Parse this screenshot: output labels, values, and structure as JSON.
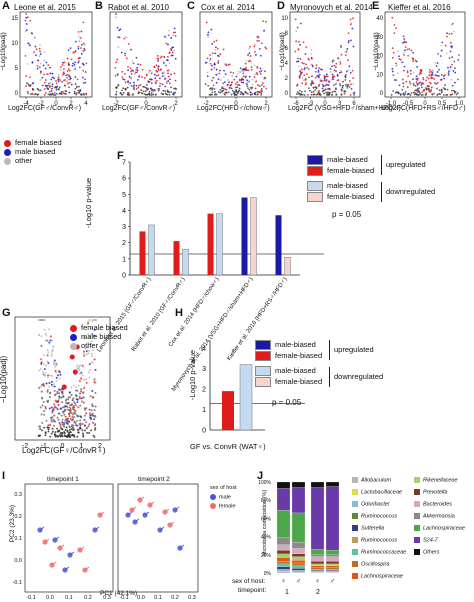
{
  "colors": {
    "female": "#e21a1c",
    "male": "#1f1fc8",
    "other": "#b9b9b9",
    "male_up": "#1a1aa6",
    "female_up": "#e11a1a",
    "male_down": "#c5d9f1",
    "female_down": "#f6d4cf"
  },
  "panel_letters": [
    "A",
    "B",
    "C",
    "D",
    "E",
    "F",
    "G",
    "H",
    "I",
    "J"
  ],
  "volcano_ylabel": "−Log10(padj)",
  "volcanos": [
    {
      "letter": "A",
      "title": "Leone et al. 2015",
      "xlabel": "Log2FC(GF♂/ConvR♂)",
      "xticks": [
        "-4",
        "-2",
        "0",
        "2",
        "4"
      ],
      "yticks": [
        "0",
        "5",
        "10",
        "15"
      ]
    },
    {
      "letter": "B",
      "title": "Rabot et al. 2010",
      "xlabel": "Log2FC(GF♂/ConvR♂)",
      "xticks": [
        "-2",
        "0",
        "2"
      ],
      "yticks": []
    },
    {
      "letter": "C",
      "title": "Cox et al. 2014",
      "xlabel": "Log2FC(HFD♂/chow♂)",
      "xticks": [
        "-2",
        "0",
        "2"
      ],
      "yticks": []
    },
    {
      "letter": "D",
      "title": "Myronovych et al. 2014",
      "xlabel": "Log2FC (VSG+HFD♂/sham+HFD♂)",
      "xticks": [
        "-6",
        "-3",
        "0",
        "3",
        "6"
      ],
      "yticks": [
        "0",
        "2",
        "4",
        "6",
        "8",
        "10"
      ]
    },
    {
      "letter": "E",
      "title": "Kieffer et al. 2016",
      "xlabel": "Log2FC(HFD+RS♂/HFD♂)",
      "xticks": [
        "-1.0",
        "-0.5",
        "0",
        "0.5",
        "1.0"
      ],
      "yticks": [
        "0",
        "10",
        "20",
        "30",
        "40"
      ]
    }
  ],
  "legend_bias": [
    {
      "key": "female",
      "label": "female biased"
    },
    {
      "key": "male",
      "label": "male biased"
    },
    {
      "key": "other",
      "label": "other"
    }
  ],
  "panel_F": {
    "ylabel": "-Log10 p-value",
    "yticks": [
      "0",
      "1",
      "2",
      "3",
      "4",
      "5",
      "6",
      "7"
    ],
    "threshold_label": "p = 0.05",
    "legend": [
      {
        "key": "male_up",
        "label": "male-biased"
      },
      {
        "key": "female_up",
        "label": "female-biased"
      },
      {
        "key": "male_down",
        "label": "male-biased"
      },
      {
        "key": "female_down",
        "label": "female-biased"
      }
    ],
    "group_up": "upregulated",
    "group_down": "downregulated",
    "categories": [
      "Leone et al. 2015 (GF♂/ConvR♂)",
      "Rabot et al. 2010 (GF♂/ConvR♂)",
      "Cox et al. 2014 (HFD♂/chow♂)",
      "Myronovych et al. 2014 (VSG+HFD♂/sham+HFD♂)",
      "Kieffer et al. 2016 (HFD+RS♂/HFD♂)"
    ]
  },
  "panel_G": {
    "ylabel": "−Log10(padj)",
    "xlabel": "Log2FC(GF♀/ConvR♀)",
    "xticks": [
      "-2",
      "-1",
      "0",
      "1",
      "2"
    ]
  },
  "panel_H": {
    "ylabel": "-Log10 p-value",
    "yticks": [
      "0",
      "1",
      "2",
      "3",
      "4"
    ],
    "threshold_label": "p = 0.05",
    "xlabel": "GF vs. ConvR (WAT♀)",
    "legend": [
      {
        "key": "male_up",
        "label": "male-biased"
      },
      {
        "key": "female_up",
        "label": "female-biased"
      },
      {
        "key": "male_down",
        "label": "male-biased"
      },
      {
        "key": "female_down",
        "label": "female-biased"
      }
    ],
    "group_up": "upregulated",
    "group_down": "downregulated"
  },
  "panel_I": {
    "timepoint1": "timepoint 1",
    "timepoint2": "timepoint 2",
    "ylabel": "PC2 (23.3%)",
    "xlabel": "PC1 (42.1%)",
    "xticks": [
      "-0.1",
      "0.0",
      "0.1",
      "0.2",
      "0.3"
    ],
    "yticks": [
      "-0.1",
      "0.0",
      "0.1",
      "0.2",
      "0.3"
    ],
    "legend_title": "sex of host",
    "legend": [
      {
        "label": "male",
        "color": "#4a52d6"
      },
      {
        "label": "female",
        "color": "#f06a6a"
      }
    ]
  },
  "panel_J": {
    "ylabel": "Microbiota composition (%)",
    "yticks": [
      "0%",
      "20%",
      "40%",
      "60%",
      "80%",
      "100%"
    ],
    "sex_label": "sex of host:",
    "timepoint_label": "timepoint:",
    "timepoints": [
      "1",
      "2"
    ],
    "taxa": [
      {
        "name": "Allobaculum",
        "color": "#b8b8b8"
      },
      {
        "name": "Lactobacillaceae",
        "color": "#dcdc4a"
      },
      {
        "name": "Odoribacter",
        "color": "#8bb8d8"
      },
      {
        "name": "Ruminococcus",
        "color": "#5e8a3c"
      },
      {
        "name": "Sutterella",
        "color": "#3a3a80"
      },
      {
        "name": "Ruminococcus",
        "color": "#b8a060"
      },
      {
        "name": "Ruminococcaceae",
        "color": "#66c0a0"
      },
      {
        "name": "Oscillospira",
        "color": "#c07020"
      },
      {
        "name": "Lachnospiraceae",
        "color": "#e05818"
      },
      {
        "name": "Rikenellaceae",
        "color": "#a8d070"
      },
      {
        "name": "Prevotella",
        "color": "#7a3a2a"
      },
      {
        "name": "Bacteroides",
        "color": "#d8a8c0"
      },
      {
        "name": "Akkermansia",
        "color": "#8a8a8a"
      },
      {
        "name": "Lachnospiraceae",
        "color": "#4aa848"
      },
      {
        "name": "S24-7",
        "color": "#6a3aa8"
      },
      {
        "name": "Others",
        "color": "#111111"
      }
    ]
  },
  "chart_data": [
    {
      "type": "bar",
      "title": "F",
      "ylabel": "-Log10 p-value",
      "ylim": [
        0,
        7
      ],
      "threshold": 1.3,
      "categories": [
        "Leone et al. 2015",
        "Rabot et al. 2010",
        "Cox et al. 2014",
        "Myronovych et al. 2014",
        "Kieffer et al. 2016"
      ],
      "series": [
        {
          "name": "male-biased upregulated",
          "values": [
            0,
            0,
            0,
            4.8,
            3.7
          ]
        },
        {
          "name": "female-biased upregulated",
          "values": [
            2.7,
            2.1,
            3.8,
            0,
            0
          ]
        },
        {
          "name": "male-biased downregulated",
          "values": [
            3.1,
            1.6,
            3.8,
            0,
            0
          ]
        },
        {
          "name": "female-biased downregulated",
          "values": [
            0,
            0,
            0,
            4.8,
            1.1
          ]
        }
      ]
    },
    {
      "type": "bar",
      "title": "H",
      "ylabel": "-Log10 p-value",
      "ylim": [
        0,
        4.4
      ],
      "threshold": 1.3,
      "categories": [
        "GF vs. ConvR (WAT♀)"
      ],
      "series": [
        {
          "name": "female-biased upregulated",
          "values": [
            1.9
          ]
        },
        {
          "name": "male-biased downregulated",
          "values": [
            3.2
          ]
        }
      ]
    },
    {
      "type": "bar",
      "title": "J",
      "ylabel": "Microbiota composition (%)",
      "categories": [
        "t1 female",
        "t1 male",
        "t2 female",
        "t2 male"
      ],
      "series": [
        {
          "name": "Others",
          "values": [
            7,
            6,
            6,
            5
          ]
        },
        {
          "name": "S24-7",
          "values": [
            24,
            28,
            68,
            70
          ]
        },
        {
          "name": "Lachnospiraceae",
          "values": [
            30,
            32,
            6,
            5
          ]
        },
        {
          "name": "Akkermansia",
          "values": [
            8,
            7,
            2,
            2
          ]
        },
        {
          "name": "Bacteroides",
          "values": [
            6,
            6,
            5,
            5
          ]
        },
        {
          "name": "Prevotella",
          "values": [
            4,
            3,
            3,
            3
          ]
        },
        {
          "name": "Rikenellaceae",
          "values": [
            4,
            4,
            2,
            2
          ]
        },
        {
          "name": "Lachnospiraceae (genus)",
          "values": [
            4,
            3,
            2,
            2
          ]
        },
        {
          "name": "Oscillospira",
          "values": [
            3,
            3,
            2,
            2
          ]
        },
        {
          "name": "Ruminococcaceae",
          "values": [
            3,
            3,
            1,
            1
          ]
        },
        {
          "name": "Sutterella",
          "values": [
            3,
            2,
            1,
            1
          ]
        },
        {
          "name": "Odoribacter",
          "values": [
            2,
            2,
            1,
            1
          ]
        },
        {
          "name": "Allobaculum",
          "values": [
            2,
            1,
            1,
            1
          ]
        }
      ]
    }
  ]
}
